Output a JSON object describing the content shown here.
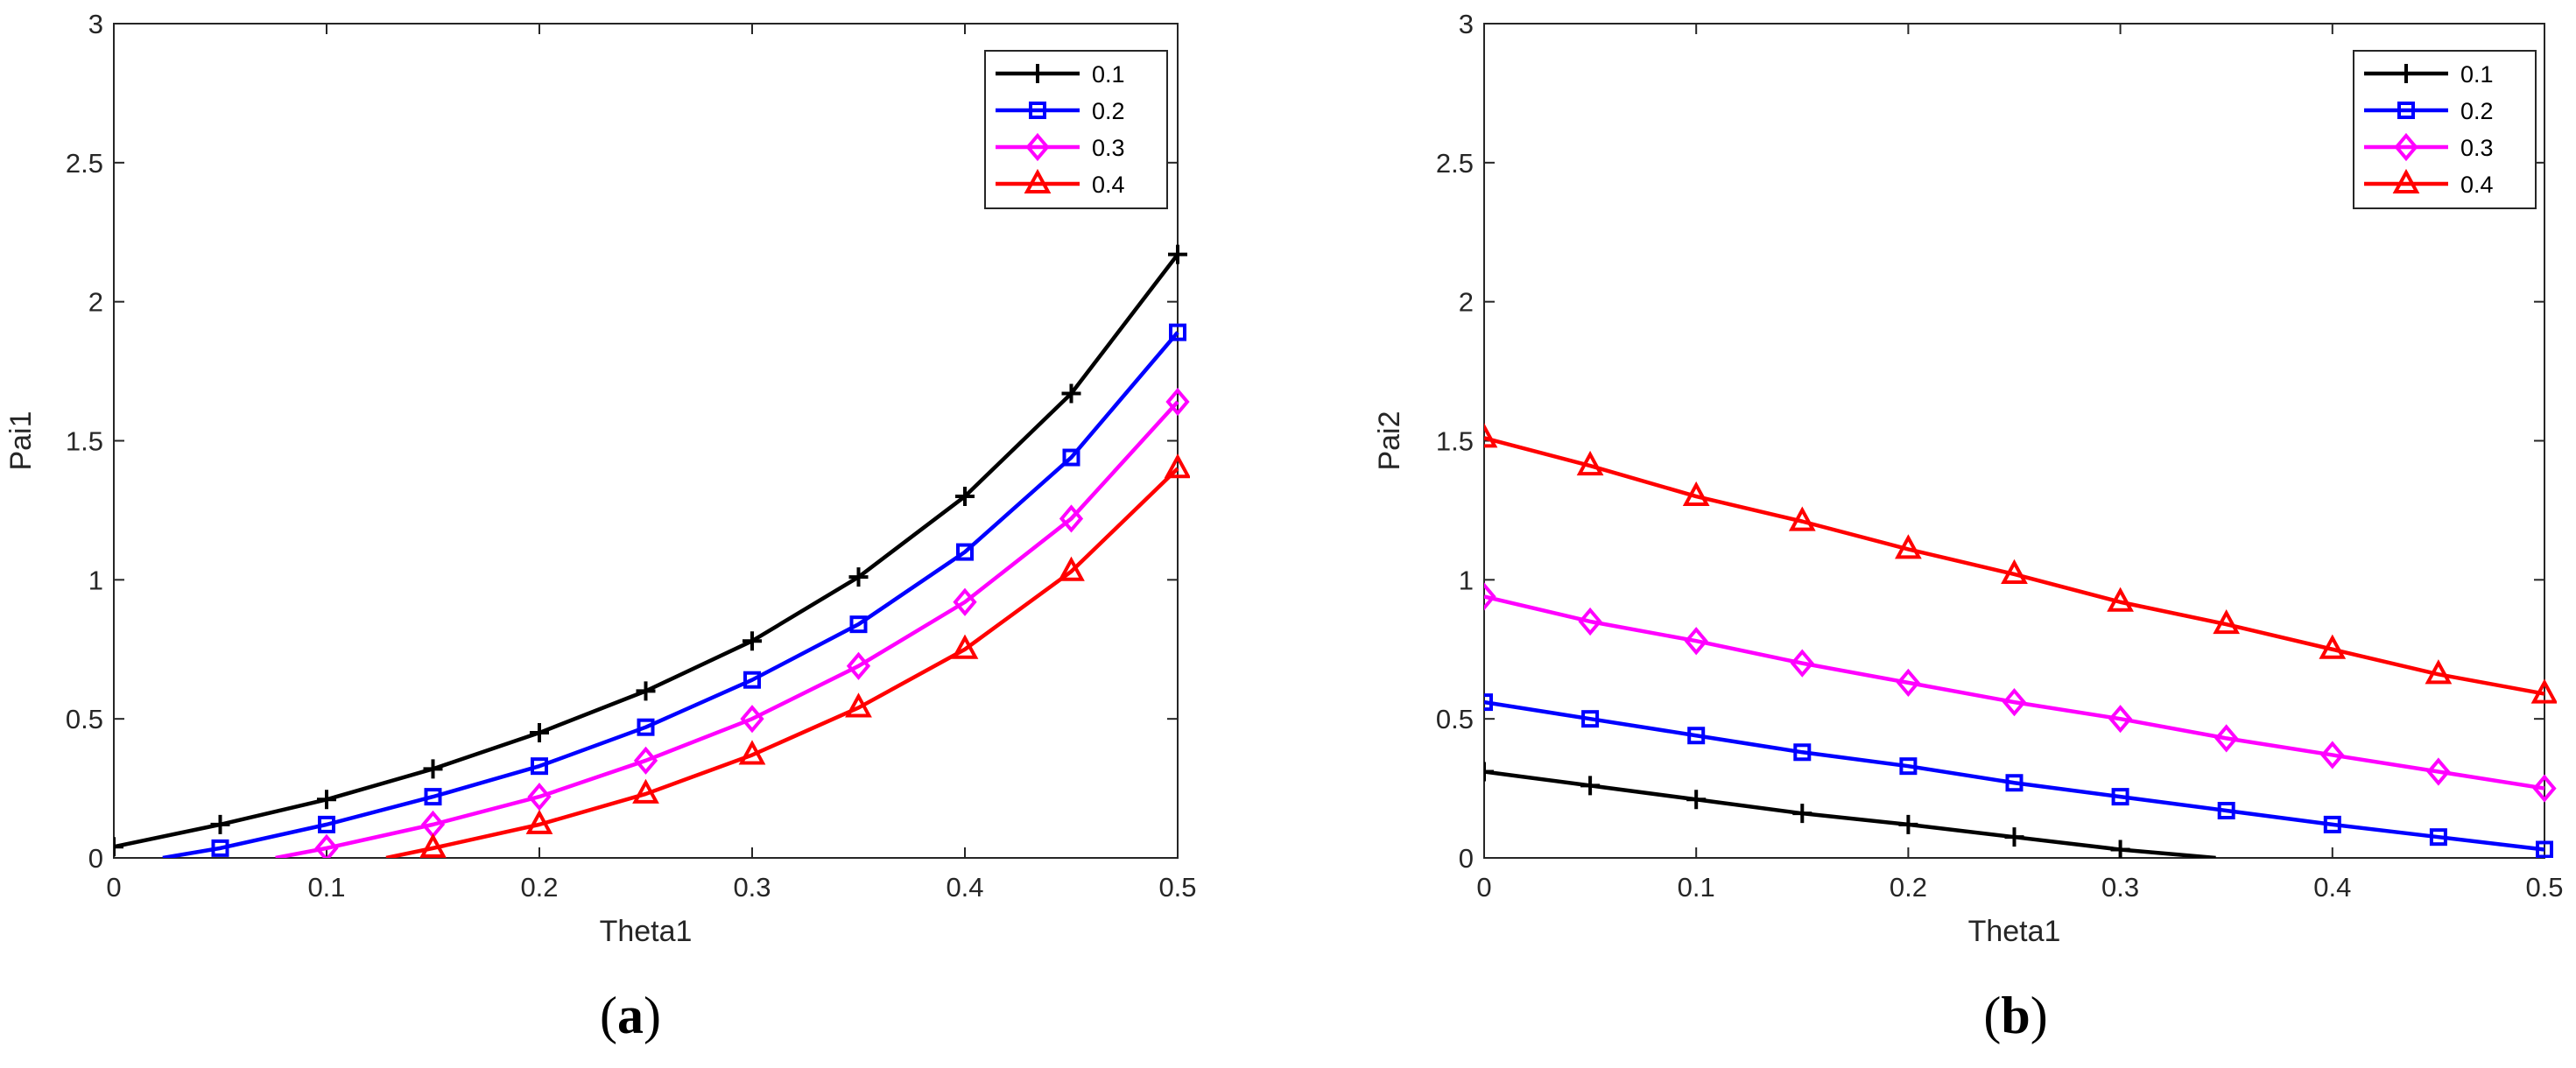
{
  "chart_data": [
    {
      "type": "line",
      "panel": "a",
      "caption_letter": "a",
      "xlabel": "Theta1",
      "ylabel": "Pai1",
      "xlim": [
        0,
        0.5
      ],
      "ylim": [
        0,
        3
      ],
      "xticks": [
        0,
        0.1,
        0.2,
        0.3,
        0.4,
        0.5
      ],
      "xtick_labels": [
        "0",
        "0.1",
        "0.2",
        "0.3",
        "0.4",
        "0.5"
      ],
      "yticks": [
        0,
        0.5,
        1,
        1.5,
        2,
        2.5,
        3
      ],
      "ytick_labels": [
        "0",
        "0.5",
        "1",
        "1.5",
        "2",
        "2.5",
        "3"
      ],
      "legend_position": "top-right",
      "series": [
        {
          "name": "0.1",
          "color": "#000000",
          "marker": "plus",
          "x": [
            0,
            0.05,
            0.1,
            0.15,
            0.2,
            0.25,
            0.3,
            0.35,
            0.4,
            0.45,
            0.5
          ],
          "y": [
            0.04,
            0.12,
            0.21,
            0.32,
            0.45,
            0.6,
            0.78,
            1.01,
            1.3,
            1.67,
            2.17
          ]
        },
        {
          "name": "0.2",
          "color": "#0000ff",
          "marker": "square",
          "x": [
            0.023,
            0.05,
            0.1,
            0.15,
            0.2,
            0.25,
            0.3,
            0.35,
            0.4,
            0.45,
            0.5
          ],
          "y": [
            0,
            0.035,
            0.12,
            0.22,
            0.33,
            0.47,
            0.64,
            0.84,
            1.1,
            1.44,
            1.89
          ]
        },
        {
          "name": "0.3",
          "color": "#ff00ff",
          "marker": "diamond",
          "x": [
            0.076,
            0.1,
            0.15,
            0.2,
            0.25,
            0.3,
            0.35,
            0.4,
            0.45,
            0.5
          ],
          "y": [
            0,
            0.035,
            0.12,
            0.22,
            0.35,
            0.5,
            0.69,
            0.92,
            1.22,
            1.64
          ]
        },
        {
          "name": "0.4",
          "color": "#ff0000",
          "marker": "triangle",
          "x": [
            0.128,
            0.15,
            0.2,
            0.25,
            0.3,
            0.35,
            0.4,
            0.45,
            0.5
          ],
          "y": [
            0,
            0.035,
            0.12,
            0.23,
            0.37,
            0.54,
            0.75,
            1.03,
            1.4
          ]
        }
      ]
    },
    {
      "type": "line",
      "panel": "b",
      "caption_letter": "b",
      "xlabel": "Theta1",
      "ylabel": "Pai2",
      "xlim": [
        0,
        0.5
      ],
      "ylim": [
        0,
        3
      ],
      "xticks": [
        0,
        0.1,
        0.2,
        0.3,
        0.4,
        0.5
      ],
      "xtick_labels": [
        "0",
        "0.1",
        "0.2",
        "0.3",
        "0.4",
        "0.5"
      ],
      "yticks": [
        0,
        0.5,
        1,
        1.5,
        2,
        2.5,
        3
      ],
      "ytick_labels": [
        "0",
        "0.5",
        "1",
        "1.5",
        "2",
        "2.5",
        "3"
      ],
      "legend_position": "top-right",
      "series": [
        {
          "name": "0.1",
          "color": "#000000",
          "marker": "plus",
          "x": [
            0,
            0.05,
            0.1,
            0.15,
            0.2,
            0.25,
            0.3,
            0.345
          ],
          "y": [
            0.31,
            0.26,
            0.21,
            0.16,
            0.12,
            0.075,
            0.03,
            0
          ]
        },
        {
          "name": "0.2",
          "color": "#0000ff",
          "marker": "square",
          "x": [
            0,
            0.05,
            0.1,
            0.15,
            0.2,
            0.25,
            0.3,
            0.35,
            0.4,
            0.45,
            0.5
          ],
          "y": [
            0.56,
            0.5,
            0.44,
            0.38,
            0.33,
            0.27,
            0.22,
            0.17,
            0.12,
            0.075,
            0.03
          ]
        },
        {
          "name": "0.3",
          "color": "#ff00ff",
          "marker": "diamond",
          "x": [
            0,
            0.05,
            0.1,
            0.15,
            0.2,
            0.25,
            0.3,
            0.35,
            0.4,
            0.45,
            0.5
          ],
          "y": [
            0.94,
            0.85,
            0.78,
            0.7,
            0.63,
            0.56,
            0.5,
            0.43,
            0.37,
            0.31,
            0.25
          ]
        },
        {
          "name": "0.4",
          "color": "#ff0000",
          "marker": "triangle",
          "x": [
            0,
            0.05,
            0.1,
            0.15,
            0.2,
            0.25,
            0.3,
            0.35,
            0.4,
            0.45,
            0.5
          ],
          "y": [
            1.51,
            1.41,
            1.3,
            1.21,
            1.11,
            1.02,
            0.92,
            0.84,
            0.75,
            0.66,
            0.59
          ]
        }
      ]
    }
  ]
}
